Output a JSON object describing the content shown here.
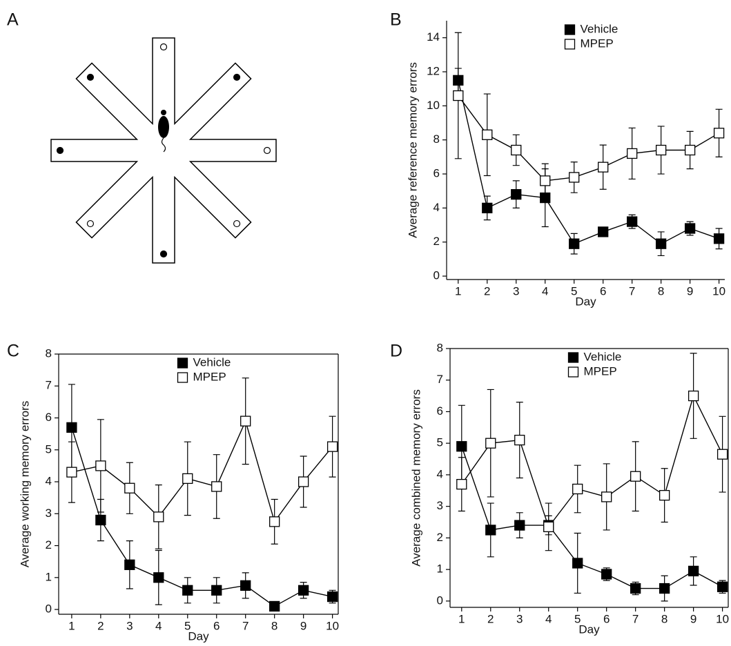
{
  "diagram": {
    "panel": "A"
  },
  "chart_data": [
    {
      "type": "line",
      "panel": "B",
      "x_label": "Day",
      "y_label": "Average reference memory errors",
      "x": [
        1,
        2,
        3,
        4,
        5,
        6,
        7,
        8,
        9,
        10
      ],
      "xlim": [
        0.6,
        10.2
      ],
      "xticks": [
        1,
        2,
        3,
        4,
        5,
        6,
        7,
        8,
        9,
        10
      ],
      "ylim": [
        -0.2,
        15
      ],
      "yticks": [
        0,
        2,
        4,
        6,
        8,
        10,
        12,
        14
      ],
      "box": false,
      "legend": "upper center",
      "series": [
        {
          "name": "Vehicle",
          "color": "#000000",
          "values": [
            11.5,
            4.0,
            4.8,
            4.6,
            1.9,
            2.6,
            3.2,
            1.9,
            2.8,
            2.2
          ],
          "errors": [
            0.7,
            0.7,
            0.8,
            1.7,
            0.6,
            0.2,
            0.4,
            0.7,
            0.4,
            0.6
          ]
        },
        {
          "name": "MPEP",
          "color": "#ffffff",
          "values": [
            10.6,
            8.3,
            7.4,
            5.6,
            5.8,
            6.4,
            7.2,
            7.4,
            7.4,
            8.4
          ],
          "errors": [
            3.7,
            2.4,
            0.9,
            1.0,
            0.9,
            1.3,
            1.5,
            1.4,
            1.1,
            1.4
          ]
        }
      ]
    },
    {
      "type": "line",
      "panel": "C",
      "x_label": "Day",
      "y_label": "Average working memory errors",
      "x": [
        1,
        2,
        3,
        4,
        5,
        6,
        7,
        8,
        9,
        10
      ],
      "xlim": [
        0.55,
        10.2
      ],
      "xticks": [
        1,
        2,
        3,
        4,
        5,
        6,
        7,
        8,
        9,
        10
      ],
      "ylim": [
        -0.15,
        8
      ],
      "yticks": [
        0,
        1,
        2,
        3,
        4,
        5,
        6,
        7,
        8
      ],
      "box": true,
      "legend": "upper center",
      "series": [
        {
          "name": "Vehicle",
          "color": "#000000",
          "values": [
            5.7,
            2.8,
            1.4,
            1.0,
            0.6,
            0.6,
            0.75,
            0.1,
            0.6,
            0.4
          ],
          "errors": [
            1.35,
            0.65,
            0.75,
            0.85,
            0.4,
            0.4,
            0.4,
            0.1,
            0.25,
            0.2
          ]
        },
        {
          "name": "MPEP",
          "color": "#ffffff",
          "values": [
            4.3,
            4.5,
            3.8,
            2.9,
            4.1,
            3.85,
            5.9,
            2.75,
            4.0,
            5.1
          ],
          "errors": [
            0.95,
            1.45,
            0.8,
            1.0,
            1.15,
            1.0,
            1.35,
            0.7,
            0.8,
            0.95
          ]
        }
      ]
    },
    {
      "type": "line",
      "panel": "D",
      "x_label": "Day",
      "y_label": "Average combined memory errors",
      "x": [
        1,
        2,
        3,
        4,
        5,
        6,
        7,
        8,
        9,
        10
      ],
      "xlim": [
        0.6,
        10.2
      ],
      "xticks": [
        1,
        2,
        3,
        4,
        5,
        6,
        7,
        8,
        9,
        10
      ],
      "ylim": [
        -0.2,
        8
      ],
      "yticks": [
        0,
        1,
        2,
        3,
        4,
        5,
        6,
        7,
        8
      ],
      "box": true,
      "legend": "upper center",
      "series": [
        {
          "name": "Vehicle",
          "color": "#000000",
          "values": [
            4.9,
            2.25,
            2.4,
            2.4,
            1.2,
            0.85,
            0.4,
            0.4,
            0.95,
            0.45
          ],
          "errors": [
            1.3,
            0.85,
            0.4,
            0.3,
            0.95,
            0.2,
            0.2,
            0.4,
            0.45,
            0.2
          ]
        },
        {
          "name": "MPEP",
          "color": "#ffffff",
          "values": [
            3.7,
            5.0,
            5.1,
            2.35,
            3.55,
            3.3,
            3.95,
            3.35,
            6.5,
            4.65
          ],
          "errors": [
            0.85,
            1.7,
            1.2,
            0.75,
            0.75,
            1.05,
            1.1,
            0.85,
            1.35,
            1.2
          ]
        }
      ]
    }
  ]
}
